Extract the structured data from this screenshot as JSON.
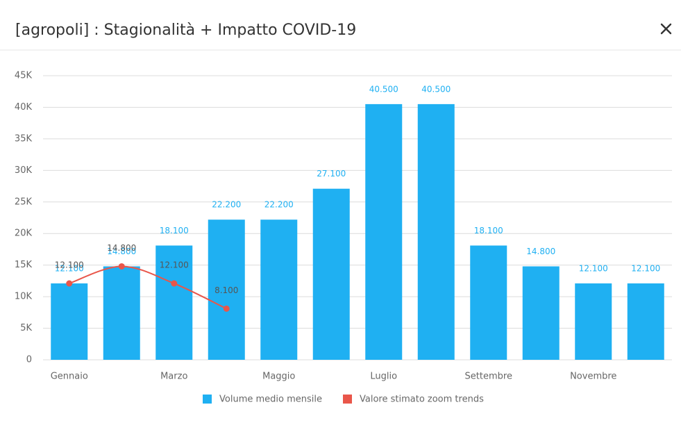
{
  "chart_data": {
    "type": "bar",
    "title": "[agropoli] : Stagionalità + Impatto COVID-19",
    "categories": [
      "Gennaio",
      null,
      "Marzo",
      null,
      "Maggio",
      null,
      "Luglio",
      null,
      "Settembre",
      null,
      "Novembre",
      null
    ],
    "series": [
      {
        "name": "Volume medio mensile",
        "type": "bar",
        "color": "#1fb0f2",
        "values": [
          12100,
          14800,
          18100,
          22200,
          22200,
          27100,
          40500,
          40500,
          18100,
          14800,
          12100,
          12100
        ],
        "value_labels": [
          "12.100",
          "14.800",
          "18.100",
          "22.200",
          "22.200",
          "27.100",
          "40.500",
          "40.500",
          "18.100",
          "14.800",
          "12.100",
          "12.100"
        ]
      },
      {
        "name": "Valore stimato zoom trends",
        "type": "line",
        "color": "#e9564a",
        "values": [
          12100,
          14800,
          12100,
          8100,
          null,
          null,
          null,
          null,
          null,
          null,
          null,
          null
        ],
        "value_labels": [
          "12.100",
          "14.800",
          "12.100",
          "8.100",
          null,
          null,
          null,
          null,
          null,
          null,
          null,
          null
        ]
      }
    ],
    "ylim": [
      0,
      45000
    ],
    "yticks": [
      0,
      {
        "value": 5000,
        "label": "5K"
      },
      {
        "value": 10000,
        "label": "10K"
      },
      {
        "value": 15000,
        "label": "15K"
      },
      {
        "value": 20000,
        "label": "20K"
      },
      {
        "value": 25000,
        "label": "25K"
      },
      {
        "value": 30000,
        "label": "30K"
      },
      {
        "value": 35000,
        "label": "35K"
      },
      {
        "value": 40000,
        "label": "40K"
      },
      {
        "value": 45000,
        "label": "45K"
      }
    ],
    "grid": true,
    "legend": "bottom"
  }
}
